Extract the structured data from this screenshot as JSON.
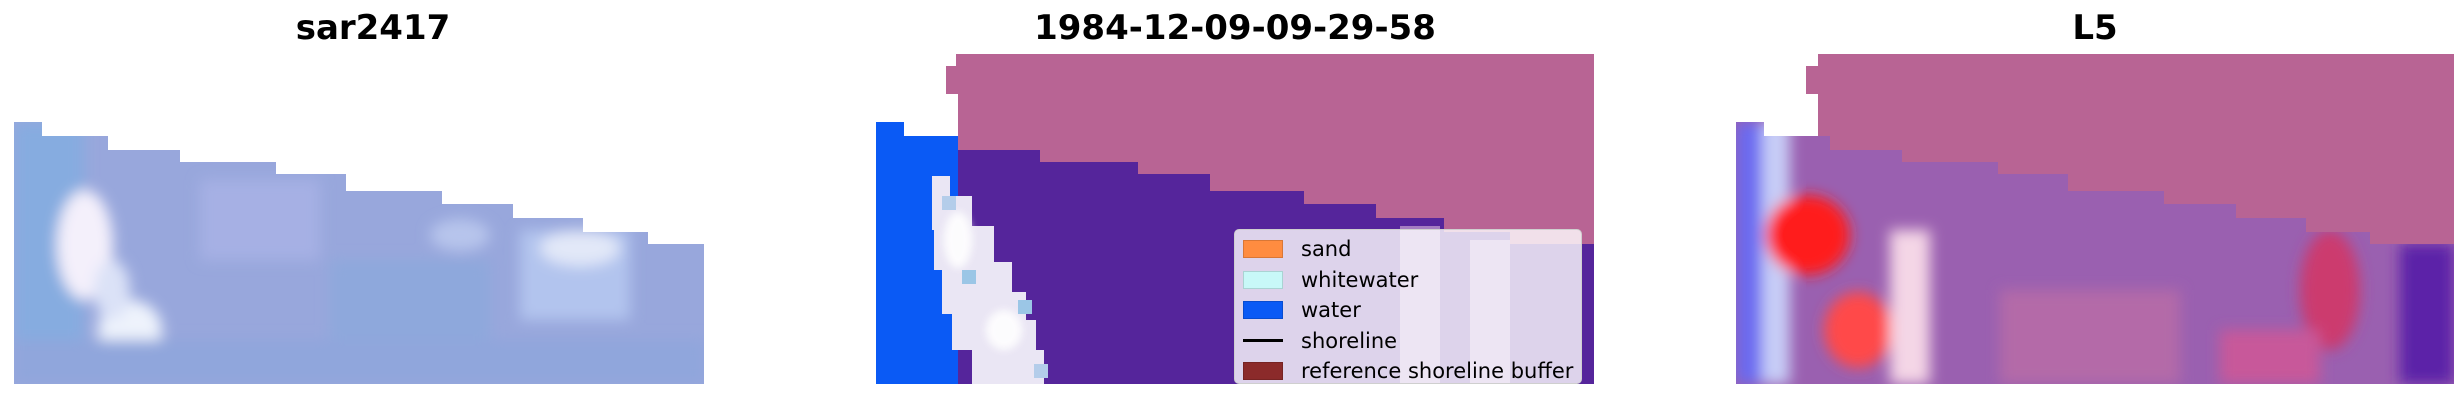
{
  "panels": [
    {
      "title": "sar2417"
    },
    {
      "title": "1984-12-09-09-29-58"
    },
    {
      "title": "L5"
    }
  ],
  "legend": {
    "items": [
      {
        "label": "sand",
        "color": "#ff8c40",
        "kind": "patch"
      },
      {
        "label": "whitewater",
        "color": "#c8f8f8",
        "kind": "patch"
      },
      {
        "label": "water",
        "color": "#0a5af5",
        "kind": "patch"
      },
      {
        "label": "shoreline",
        "color": "#000000",
        "kind": "line"
      },
      {
        "label": "reference shoreline buffer",
        "color": "#8b2a2a",
        "kind": "patch"
      }
    ]
  },
  "colors": {
    "reference_buffer_overlay": "#b86494",
    "water": "#0a5af5",
    "sand_class": "#55259b"
  }
}
